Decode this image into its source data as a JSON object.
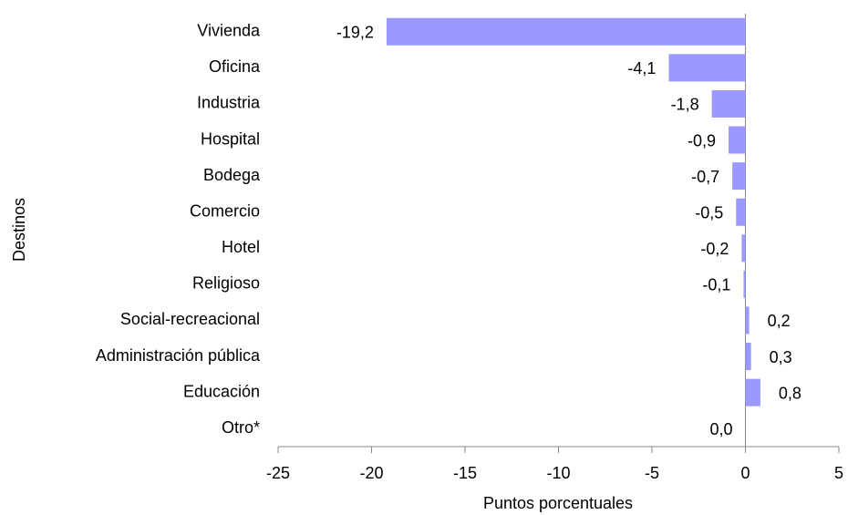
{
  "chart_data": {
    "type": "barh",
    "categories": [
      "Vivienda",
      "Oficina",
      "Industria",
      "Hospital",
      "Bodega",
      "Comercio",
      "Hotel",
      "Religioso",
      "Social-recreacional",
      "Administración pública",
      "Educación",
      "Otro*"
    ],
    "values": [
      -19.2,
      -4.1,
      -1.8,
      -0.9,
      -0.7,
      -0.5,
      -0.2,
      -0.1,
      0.2,
      0.3,
      0.8,
      0.0
    ],
    "value_labels": [
      "-19,2",
      "-4,1",
      "-1,8",
      "-0,9",
      "-0,7",
      "-0,5",
      "-0,2",
      "-0,1",
      "0,2",
      "0,3",
      "0,8",
      "0,0"
    ],
    "color": "#9999ff",
    "xlim": [
      -25,
      5
    ],
    "xticks": [
      -25,
      -20,
      -15,
      -10,
      -5,
      0,
      5
    ],
    "xlabel": "Puntos porcentuales",
    "ylabel": "Destinos",
    "grid": false
  }
}
